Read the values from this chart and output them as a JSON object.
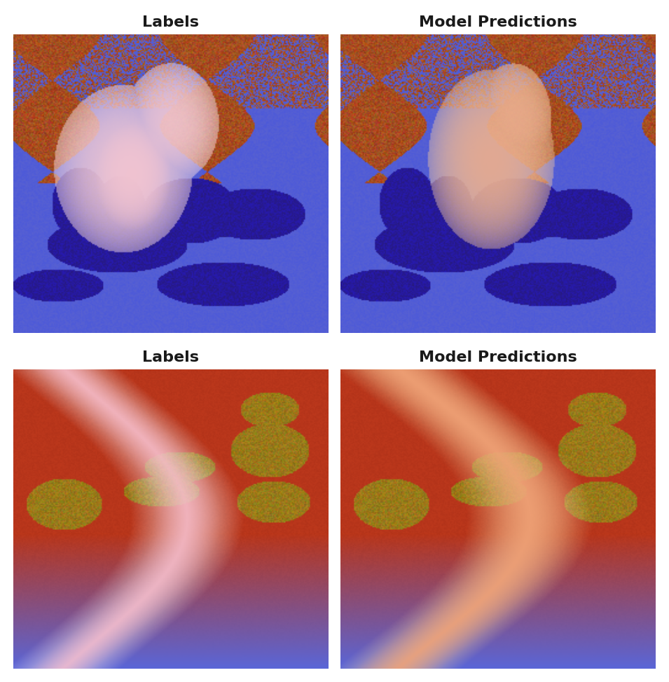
{
  "titles": [
    "Labels",
    "Model Predictions",
    "Labels",
    "Model Predictions"
  ],
  "title_fontsize": 16,
  "title_fontweight": "bold",
  "title_color": "#1a1a1a",
  "background_color": "#ffffff",
  "fig_width": 9.55,
  "fig_height": 9.73,
  "dpi": 100
}
